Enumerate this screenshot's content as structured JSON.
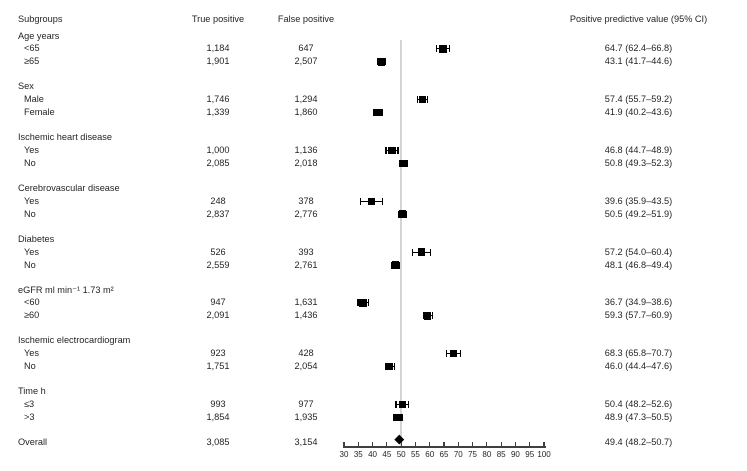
{
  "header": {
    "subgroups": "Subgroups",
    "true_positive": "True positive",
    "false_positive": "False positive",
    "ppv": "Positive predictive value (95% CI)"
  },
  "colors": {
    "text": "#231f20",
    "axis": "#3f3f3f",
    "reference_line": "#d4d4d4",
    "marker": "#000000"
  },
  "chart_data": {
    "type": "forest",
    "x_axis": {
      "range": [
        30,
        100
      ],
      "ticks": [
        30,
        35,
        40,
        45,
        50,
        55,
        60,
        65,
        70,
        75,
        80,
        85,
        90,
        95,
        100
      ],
      "reference_line": 50
    },
    "rows": [
      {
        "type": "group",
        "label": "Age years"
      },
      {
        "type": "item",
        "label": "<65",
        "true_positive": "1,184",
        "false_positive": "647",
        "estimate": 64.7,
        "ci_low": 62.4,
        "ci_high": 66.8,
        "ppv": "64.7 (62.4–66.8)"
      },
      {
        "type": "item",
        "label": "≥65",
        "true_positive": "1,901",
        "false_positive": "2,507",
        "estimate": 43.1,
        "ci_low": 41.7,
        "ci_high": 44.6,
        "ppv": "43.1 (41.7–44.6)"
      },
      {
        "type": "group",
        "label": "Sex"
      },
      {
        "type": "item",
        "label": "Male",
        "true_positive": "1,746",
        "false_positive": "1,294",
        "estimate": 57.4,
        "ci_low": 55.7,
        "ci_high": 59.2,
        "ppv": "57.4 (55.7–59.2)"
      },
      {
        "type": "item",
        "label": "Female",
        "true_positive": "1,339",
        "false_positive": "1,860",
        "estimate": 41.9,
        "ci_low": 40.2,
        "ci_high": 43.6,
        "ppv": "41.9 (40.2–43.6)"
      },
      {
        "type": "group",
        "label": "Ischemic heart disease"
      },
      {
        "type": "item",
        "label": "Yes",
        "true_positive": "1,000",
        "false_positive": "1,136",
        "estimate": 46.8,
        "ci_low": 44.7,
        "ci_high": 48.9,
        "ppv": "46.8 (44.7–48.9)"
      },
      {
        "type": "item",
        "label": "No",
        "true_positive": "2,085",
        "false_positive": "2,018",
        "estimate": 50.8,
        "ci_low": 49.3,
        "ci_high": 52.3,
        "ppv": "50.8 (49.3–52.3)"
      },
      {
        "type": "group",
        "label": "Cerebrovascular disease"
      },
      {
        "type": "item",
        "label": "Yes",
        "true_positive": "248",
        "false_positive": "378",
        "estimate": 39.6,
        "ci_low": 35.9,
        "ci_high": 43.5,
        "ppv": "39.6 (35.9–43.5)"
      },
      {
        "type": "item",
        "label": "No",
        "true_positive": "2,837",
        "false_positive": "2,776",
        "estimate": 50.5,
        "ci_low": 49.2,
        "ci_high": 51.9,
        "ppv": "50.5 (49.2–51.9)"
      },
      {
        "type": "group",
        "label": "Diabetes"
      },
      {
        "type": "item",
        "label": "Yes",
        "true_positive": "526",
        "false_positive": "393",
        "estimate": 57.2,
        "ci_low": 54.0,
        "ci_high": 60.4,
        "ppv": "57.2 (54.0–60.4)"
      },
      {
        "type": "item",
        "label": "No",
        "true_positive": "2,559",
        "false_positive": "2,761",
        "estimate": 48.1,
        "ci_low": 46.8,
        "ci_high": 49.4,
        "ppv": "48.1 (46.8–49.4)"
      },
      {
        "type": "group",
        "label": "eGFR ml min⁻¹ 1.73 m²"
      },
      {
        "type": "item",
        "label": "<60",
        "true_positive": "947",
        "false_positive": "1,631",
        "estimate": 36.7,
        "ci_low": 34.9,
        "ci_high": 38.6,
        "ppv": "36.7 (34.9–38.6)"
      },
      {
        "type": "item",
        "label": "≥60",
        "true_positive": "2,091",
        "false_positive": "1,436",
        "estimate": 59.3,
        "ci_low": 57.7,
        "ci_high": 60.9,
        "ppv": "59.3 (57.7–60.9)"
      },
      {
        "type": "group",
        "label": "Ischemic electrocardiogram"
      },
      {
        "type": "item",
        "label": "Yes",
        "true_positive": "923",
        "false_positive": "428",
        "estimate": 68.3,
        "ci_low": 65.8,
        "ci_high": 70.7,
        "ppv": "68.3 (65.8–70.7)"
      },
      {
        "type": "item",
        "label": "No",
        "true_positive": "1,751",
        "false_positive": "2,054",
        "estimate": 46.0,
        "ci_low": 44.4,
        "ci_high": 47.6,
        "ppv": "46.0 (44.4–47.6)"
      },
      {
        "type": "group",
        "label": "Time h"
      },
      {
        "type": "item",
        "label": "≤3",
        "true_positive": "993",
        "false_positive": "977",
        "estimate": 50.4,
        "ci_low": 48.2,
        "ci_high": 52.6,
        "ppv": "50.4 (48.2–52.6)"
      },
      {
        "type": "item",
        "label": ">3",
        "true_positive": "1,854",
        "false_positive": "1,935",
        "estimate": 48.9,
        "ci_low": 47.3,
        "ci_high": 50.5,
        "ppv": "48.9 (47.3–50.5)"
      },
      {
        "type": "overall",
        "label": "Overall",
        "true_positive": "3,085",
        "false_positive": "3,154",
        "estimate": 49.4,
        "ci_low": 48.2,
        "ci_high": 50.7,
        "ppv": "49.4 (48.2–50.7)"
      }
    ]
  }
}
